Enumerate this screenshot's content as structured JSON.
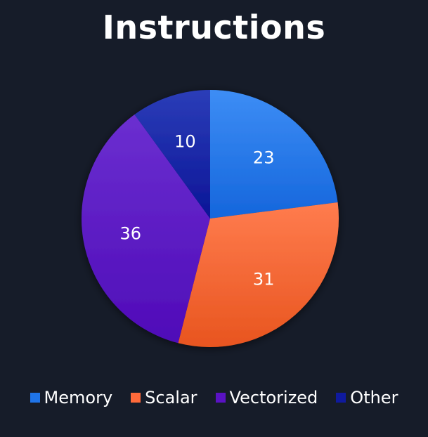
{
  "chart_data": {
    "type": "pie",
    "title": "Instructions",
    "categories": [
      "Memory",
      "Scalar",
      "Vectorized",
      "Other"
    ],
    "values": [
      23,
      31,
      36,
      10
    ],
    "start_angle": "12 o'clock, clockwise",
    "legend_position": "bottom",
    "colors": {
      "Memory": "#1f74e8",
      "Scalar": "#ff6a3a",
      "Vectorized": "#5a12c4",
      "Other": "#0f1a9e"
    },
    "gradients": {
      "Memory": [
        "#3d8df5",
        "#1566dc"
      ],
      "Scalar": [
        "#ff7c4e",
        "#e8551f"
      ],
      "Vectorized": [
        "#6b2fd0",
        "#4f0bb8"
      ],
      "Other": [
        "#2b3db8",
        "#0b1597"
      ]
    },
    "background": "#161c29"
  }
}
